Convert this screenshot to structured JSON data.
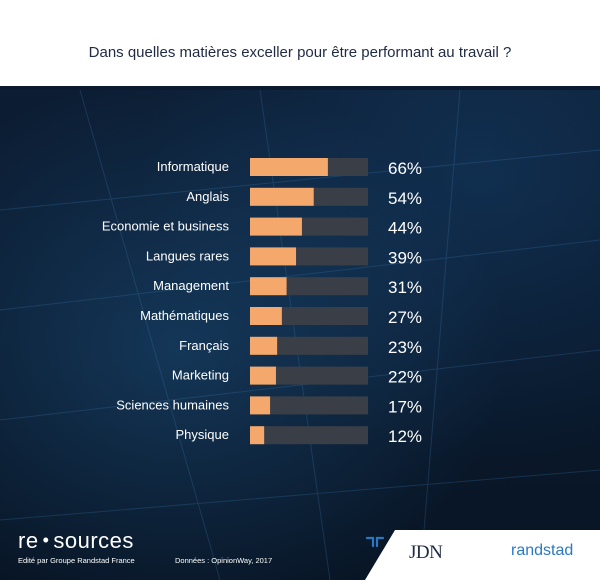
{
  "title": "Dans quelles matières exceller pour être performant au travail ?",
  "chart_data": {
    "type": "bar",
    "orientation": "horizontal",
    "categories": [
      "Informatique",
      "Anglais",
      "Economie et business",
      "Langues rares",
      "Management",
      "Mathématiques",
      "Français",
      "Marketing",
      "Sciences humaines",
      "Physique"
    ],
    "values": [
      66,
      54,
      44,
      39,
      31,
      27,
      23,
      22,
      17,
      12
    ],
    "value_labels": [
      "66%",
      "54%",
      "44%",
      "39%",
      "31%",
      "27%",
      "23%",
      "22%",
      "17%",
      "12%"
    ],
    "xlim": [
      0,
      100
    ],
    "bar_color": "#f4a86b",
    "track_color": "#3a3f47"
  },
  "footer": {
    "brand_left": "re",
    "brand_dot": "•",
    "brand_right": "sources",
    "edited": "Edité par Groupe Randstad France",
    "source": "Données : OpinionWay, 2017",
    "jdn": "JDN",
    "randstad": "randstad",
    "randstad_color": "#2a78c4"
  }
}
